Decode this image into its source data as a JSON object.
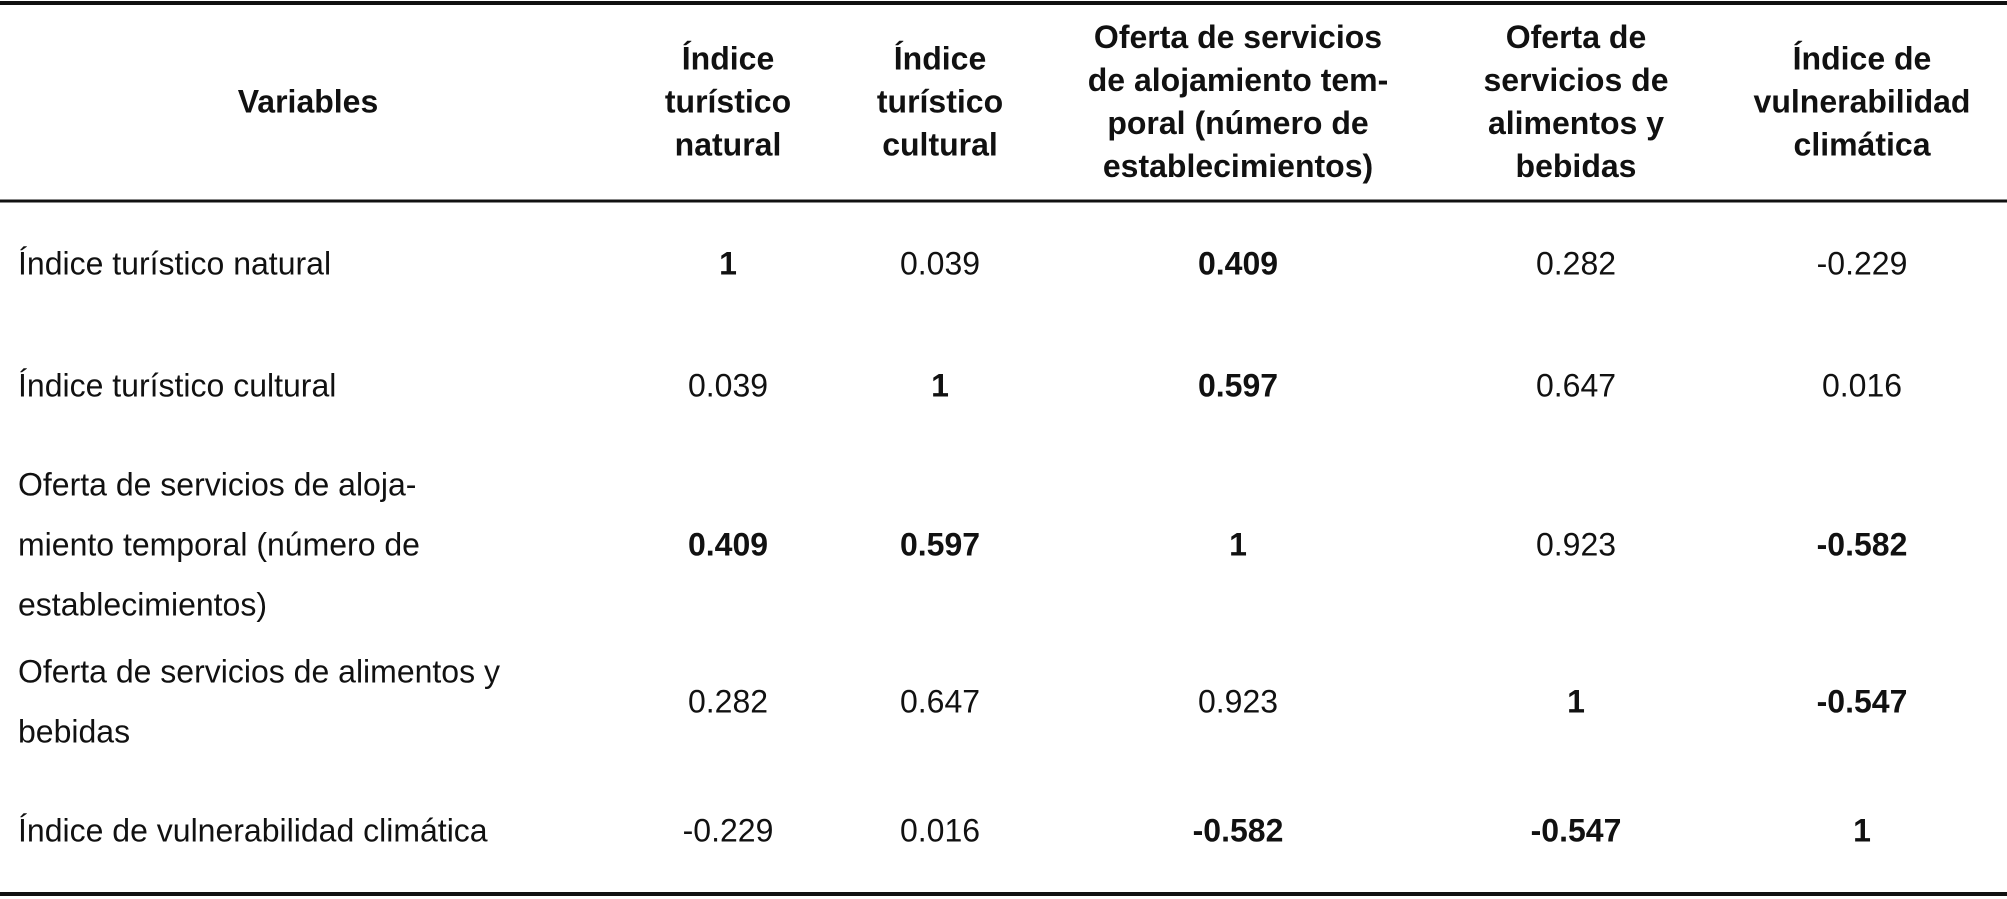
{
  "table": {
    "header": [
      [
        "Variables"
      ],
      [
        "Índice",
        "turístico",
        "natural"
      ],
      [
        "Índice",
        "turístico",
        "cultural"
      ],
      [
        "Oferta de servicios",
        "de alojamiento tem-",
        "poral (número de",
        "establecimientos)"
      ],
      [
        "Oferta de",
        "servicios de",
        "alimentos y",
        "bebidas"
      ],
      [
        "Índice de",
        "vulnerabilidad",
        "climática"
      ]
    ],
    "rows": [
      {
        "label": [
          "Índice turístico natural"
        ],
        "cells": [
          "1",
          "0.039",
          "0.409",
          "0.282",
          "-0.229"
        ],
        "bold": [
          true,
          false,
          true,
          false,
          false
        ]
      },
      {
        "label": [
          "Índice turístico cultural"
        ],
        "cells": [
          "0.039",
          "1",
          "0.597",
          "0.647",
          "0.016"
        ],
        "bold": [
          false,
          true,
          true,
          false,
          false
        ]
      },
      {
        "label": [
          "Oferta de servicios de aloja-",
          "miento temporal (número de",
          "establecimientos)"
        ],
        "cells": [
          "0.409",
          "0.597",
          "1",
          "0.923",
          "-0.582"
        ],
        "bold": [
          true,
          true,
          true,
          false,
          true
        ]
      },
      {
        "label": [
          "Oferta de servicios de alimentos y",
          "bebidas"
        ],
        "cells": [
          "0.282",
          "0.647",
          "0.923",
          "1",
          "-0.547"
        ],
        "bold": [
          false,
          false,
          false,
          true,
          true
        ]
      },
      {
        "label": [
          "Índice de vulnerabilidad climática"
        ],
        "cells": [
          "-0.229",
          "0.016",
          "-0.582",
          "-0.547",
          "1"
        ],
        "bold": [
          false,
          false,
          true,
          true,
          true
        ]
      }
    ]
  }
}
